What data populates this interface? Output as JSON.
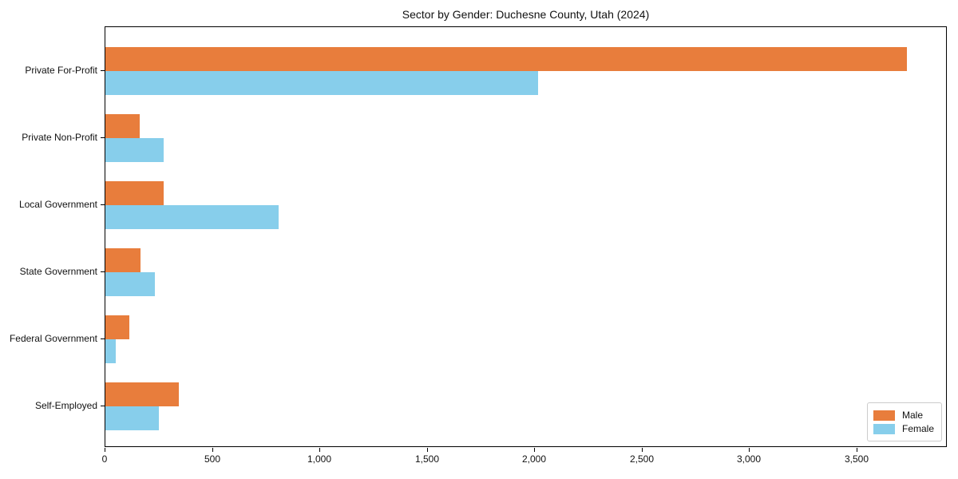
{
  "chart_data": {
    "type": "bar",
    "orientation": "horizontal",
    "title": "Sector by Gender: Duchesne County, Utah (2024)",
    "categories": [
      "Private For-Profit",
      "Private Non-Profit",
      "Local Government",
      "State Government",
      "Federal Government",
      "Self-Employed"
    ],
    "series": [
      {
        "name": "Male",
        "color": "#e87d3c",
        "values": [
          3730,
          160,
          270,
          165,
          110,
          340
        ]
      },
      {
        "name": "Female",
        "color": "#87ceeb",
        "values": [
          2015,
          270,
          805,
          230,
          48,
          250
        ]
      }
    ],
    "xlim": [
      0,
      3920
    ],
    "xticks": [
      0,
      500,
      1000,
      1500,
      2000,
      2500,
      3000,
      3500
    ],
    "xtick_labels": [
      "0",
      "500",
      "1,000",
      "1,500",
      "2,000",
      "2,500",
      "3,000",
      "3,500"
    ],
    "grid": false,
    "legend_position": "lower right",
    "axis_color": "#000000",
    "background_color": "#ffffff"
  }
}
